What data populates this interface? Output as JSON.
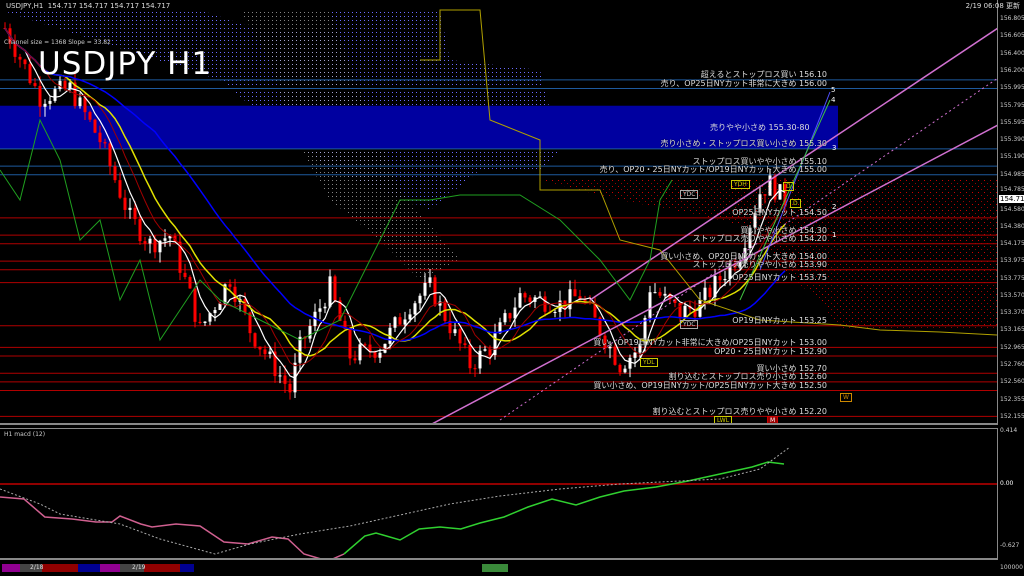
{
  "header": {
    "symbol_info": "USDJPY,H1  154.717 154.717 154.717 154.717",
    "channel_info": "Channel size = 1368 Slope = 33.82",
    "big_title": "USDJPY H1",
    "timestamp": "2/19 06:08 更新"
  },
  "price_axis": {
    "labels": [
      "156.805",
      "156.605",
      "156.400",
      "156.200",
      "155.995",
      "155.795",
      "155.595",
      "155.390",
      "155.190",
      "154.985",
      "154.785",
      "154.580",
      "154.380",
      "154.175",
      "153.975",
      "153.775",
      "153.570",
      "153.370",
      "153.165",
      "152.965",
      "152.760",
      "152.560",
      "152.355",
      "152.155"
    ],
    "current_price": "154.717"
  },
  "zone": {
    "label": "売りやや小さめ 155.30-80",
    "low": 155.3,
    "high": 155.8,
    "color": "#0000a0"
  },
  "annotations": [
    {
      "text": "超えるとストップロス買い 156.10",
      "price": 156.1,
      "side": "sell"
    },
    {
      "text": "売り、OP25日NYカット非常に大きめ 156.00",
      "price": 156.0,
      "side": "sell"
    },
    {
      "text": "売り小さめ・ストップロス買い小さめ 155.30",
      "price": 155.3,
      "side": "sell"
    },
    {
      "text": "ストップロス買いやや小さめ 155.10",
      "price": 155.1,
      "side": "sell"
    },
    {
      "text": "売り、OP20・25日NYカット/OP19日NYカット大きめ 155.00",
      "price": 155.0,
      "side": "sell"
    },
    {
      "text": "OP25日NYカット 154.50",
      "price": 154.5,
      "side": "buy"
    },
    {
      "text": "買いやや小さめ 154.30",
      "price": 154.3,
      "side": "buy"
    },
    {
      "text": "ストップロス売りやや小さめ 154.20",
      "price": 154.2,
      "side": "buy"
    },
    {
      "text": "買い小さめ、OP20日NYカット大きめ 154.00",
      "price": 154.0,
      "side": "buy"
    },
    {
      "text": "ストップロス売りやや小さめ 153.90",
      "price": 153.9,
      "side": "buy"
    },
    {
      "text": "OP25日NYカット 153.75",
      "price": 153.75,
      "side": "buy"
    },
    {
      "text": "OP19日NYカット 153.25",
      "price": 153.25,
      "side": "buy"
    },
    {
      "text": "買い、OP19日NYカット非常に大きめ/OP25日NYカット 153.00",
      "price": 153.0,
      "side": "buy"
    },
    {
      "text": "OP20・25日NYカット 152.90",
      "price": 152.9,
      "side": "buy"
    },
    {
      "text": "買い小さめ 152.70",
      "price": 152.7,
      "side": "buy"
    },
    {
      "text": "割り込むとストップロス売り小さめ 152.60",
      "price": 152.6,
      "side": "buy"
    },
    {
      "text": "買い小さめ、OP19日NYカット/OP25日NYカット大きめ 152.50",
      "price": 152.5,
      "side": "buy"
    },
    {
      "text": "割り込むとストップロス売りやや小さめ 152.20",
      "price": 152.2,
      "side": "buy"
    }
  ],
  "wave_labels": [
    "1",
    "2",
    "3",
    "4",
    "5"
  ],
  "tags": {
    "ydc": "YDC",
    "ydh": "YDH",
    "ydl": "YDL",
    "lwl": "LWL",
    "d": "D",
    "w": "W",
    "m": "M"
  },
  "colors": {
    "sell_line": "#1e5a9e",
    "buy_line": "#b00000",
    "bull": "#ffffff",
    "bear": "#ff0000",
    "channel": "#d070d0",
    "ma_fast": "#ffffff",
    "ma_mid": "#e0e000",
    "ma_slow": "#0000ff"
  },
  "macd": {
    "label": "H1  macd (12)",
    "axis": [
      "0.414",
      "0.00",
      "-0.627"
    ]
  },
  "time_axis": {
    "labels": [
      "2/18",
      "2/19"
    ],
    "scale_label": "100000"
  }
}
